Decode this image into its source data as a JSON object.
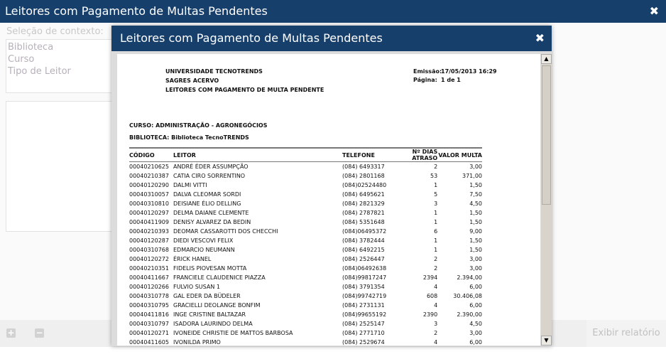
{
  "window": {
    "title": "Leitores com Pagamento de Multas Pendentes",
    "close": "✖"
  },
  "context": {
    "label": "Seleção de contexto:",
    "items": [
      "Biblioteca",
      "Curso",
      "Tipo de Leitor"
    ]
  },
  "footer": {
    "add": "+",
    "remove": "−",
    "show_report": "Exibir relatório"
  },
  "modal": {
    "title": "Leitores com Pagamento de Multas Pendentes",
    "close": "✖"
  },
  "report": {
    "org": "UNIVERSIDADE TECNOTRENDS",
    "system": "SAGRES ACERVO",
    "title": "LEITORES COM PAGAMENTO DE MULTA PENDENTE",
    "emissao_label": "Emissão:",
    "emissao": "17/05/2013 16:29",
    "pagina_label": "Página:",
    "pagina": "1 de 1",
    "curso": "CURSO: ADMINISTRAÇÃO - AGRONEGÓCIOS",
    "biblioteca": "BIBLIOTECA: Biblioteca TecnoTRENDS",
    "columns": [
      "CÓDIGO",
      "LEITOR",
      "TELEFONE",
      "Nº DIAS ATRASO",
      "VALOR MULTA"
    ],
    "rows": [
      [
        "00040210625",
        "ANDRÉ ÉDER ASSUMPÇÃO",
        "(084) 6493317",
        "2",
        "3,00"
      ],
      [
        "00040210387",
        "CATIA CIRO SORRENTINO",
        "(084) 2801168",
        "53",
        "371,00"
      ],
      [
        "00040120290",
        "DALMI VITTI",
        "(084)02524480",
        "1",
        "1,50"
      ],
      [
        "00040310057",
        "DALVA CLEOMAR SORDI",
        "(084) 6495621",
        "5",
        "7,50"
      ],
      [
        "00040310810",
        "DEISIANE ÉLIO DELLING",
        "(084) 2821329",
        "3",
        "4,50"
      ],
      [
        "00040120297",
        "DELMA DAIANE CLEMENTE",
        "(084) 2787821",
        "1",
        "1,50"
      ],
      [
        "00040411909",
        "DENISY ALVAREZ DA BEDIN",
        "(084) 5351648",
        "1",
        "1,50"
      ],
      [
        "00040210393",
        "DEOMAR CASSAROTTI DOS CHECCHI",
        "(084)06495372",
        "6",
        "9,00"
      ],
      [
        "00040120287",
        "DIEDI VESCOVI FELIX",
        "(084) 3782444",
        "1",
        "1,50"
      ],
      [
        "00040310768",
        "EDMARCIO NEUMANN",
        "(084) 6492215",
        "1",
        "1,50"
      ],
      [
        "00040120272",
        "ÉRICK HANEL",
        "(084) 2526447",
        "2",
        "3,00"
      ],
      [
        "00040210351",
        "FIDELIS PIOVESAN MOTTA",
        "(084)06492638",
        "2",
        "3,00"
      ],
      [
        "00040411667",
        "FRANCIELE CLAUDENICE PIAZZA",
        "(084)99817247",
        "2394",
        "2.394,00"
      ],
      [
        "00040120266",
        "FULVIO SUSAN 1",
        "(084) 3791354",
        "4",
        "6,00"
      ],
      [
        "00040310778",
        "GAL EDER DA BÜDELER",
        "(084)99742719",
        "608",
        "30.406,08"
      ],
      [
        "00040310795",
        "GRACIELLI DEOLANGE BONFIM",
        "(084) 2731131",
        "4",
        "6,00"
      ],
      [
        "00040411816",
        "INGE CRISTINE BALTAZAR",
        "(084)99655192",
        "2390",
        "2.390,00"
      ],
      [
        "00040310797",
        "ISADORA LAURINDO DELMA",
        "(084) 2525147",
        "3",
        "4,50"
      ],
      [
        "00040120271",
        "IVONEIDE CHRISTIE DE MATTOS BARBOSA",
        "(084) 2771710",
        "2",
        "3,00"
      ],
      [
        "00040411605",
        "IVONILDA PRIMO",
        "(084) 2529674",
        "4",
        "6,00"
      ]
    ]
  },
  "scrollbar": {
    "up": "▲",
    "down": "▼"
  }
}
